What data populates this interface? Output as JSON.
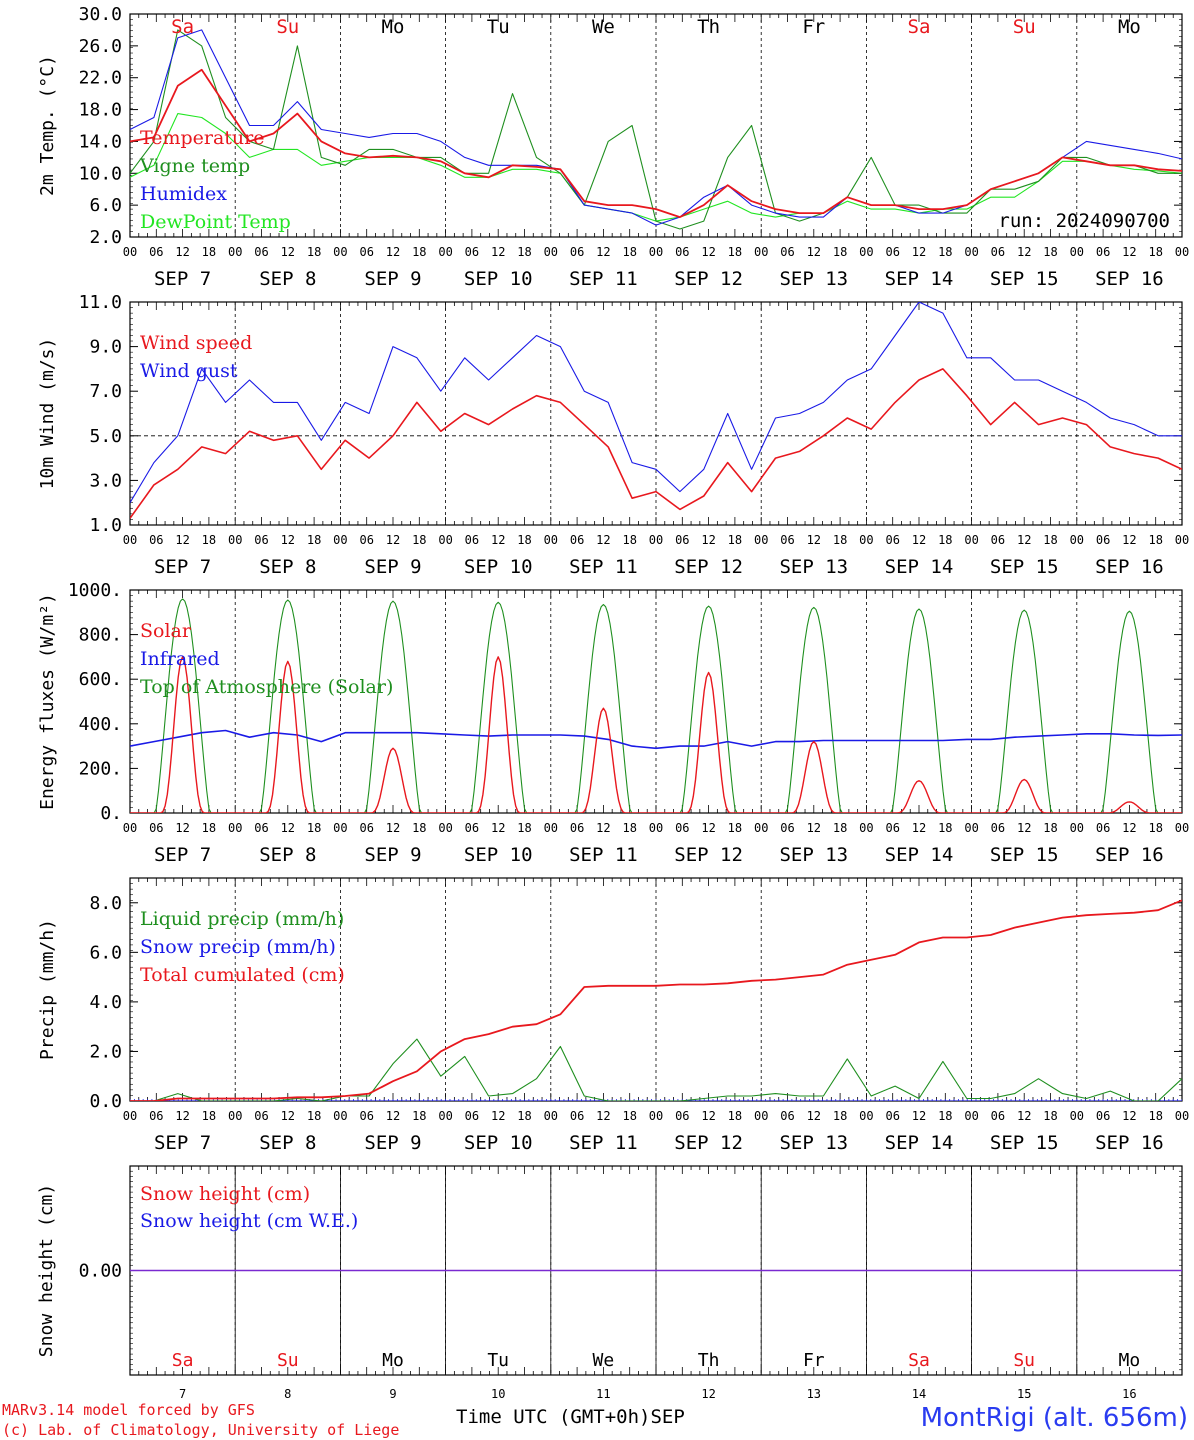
{
  "colors": {
    "red": "#e8181e",
    "green": "#1f8f1f",
    "blue": "#1a1ae6",
    "lightgreen": "#22e622",
    "purple": "#7a2ad0",
    "text": "#000000"
  },
  "days": [
    {
      "abbr": "Sa",
      "date": "7",
      "weekend": true
    },
    {
      "abbr": "Su",
      "date": "8",
      "weekend": true
    },
    {
      "abbr": "Mo",
      "date": "9",
      "weekend": false
    },
    {
      "abbr": "Tu",
      "date": "10",
      "weekend": false
    },
    {
      "abbr": "We",
      "date": "11",
      "weekend": false
    },
    {
      "abbr": "Th",
      "date": "12",
      "weekend": false
    },
    {
      "abbr": "Fr",
      "date": "13",
      "weekend": false
    },
    {
      "abbr": "Sa",
      "date": "14",
      "weekend": true
    },
    {
      "abbr": "Su",
      "date": "15",
      "weekend": true
    },
    {
      "abbr": "Mo",
      "date": "16",
      "weekend": false
    }
  ],
  "month_label": "SEP",
  "hour_ticks": [
    "00",
    "06",
    "12",
    "18"
  ],
  "footer": {
    "model": "MARv3.14 model forced by GFS",
    "lab": "(c) Lab. of Climatology, University of Liege",
    "xaxis_title": "Time UTC (GMT+0h)",
    "month": "SEP",
    "station": "MontRigi (alt. 656m)"
  },
  "chart_data": [
    {
      "id": "temperature",
      "type": "line",
      "ylabel": "2m Temp. (°C)",
      "ylim": [
        2,
        30
      ],
      "yticks": [
        "30.0",
        "26.0",
        "22.0",
        "18.0",
        "14.0",
        "10.0",
        "6.0",
        "2.0"
      ],
      "annotation": "run: 2024090700",
      "x_start": "2024-09-07 00:00 UTC",
      "x_step_hours": 6,
      "series": [
        {
          "name": "Temperature",
          "color": "red",
          "values": [
            14,
            14.5,
            21,
            23,
            18.5,
            14,
            15,
            17.5,
            14,
            12.5,
            12,
            12.2,
            12,
            11.5,
            10,
            9.5,
            11,
            10.8,
            10.5,
            6.5,
            6,
            6,
            5.5,
            4.5,
            6,
            8.5,
            6.5,
            5.5,
            5,
            5,
            7,
            6,
            6,
            5.5,
            5.5,
            6,
            8,
            9,
            10,
            12,
            11.5,
            11,
            11,
            10.5,
            10.3
          ]
        },
        {
          "name": "Vigne temp",
          "color": "green",
          "values": [
            10,
            14,
            28,
            26,
            17,
            14,
            13,
            26,
            12,
            11,
            13,
            13,
            12,
            12,
            10,
            10,
            20,
            12,
            10,
            6,
            14,
            16,
            4,
            3,
            4,
            12,
            16,
            5,
            4,
            5,
            7,
            12,
            6,
            6,
            5,
            5,
            8,
            8,
            9,
            12,
            12,
            11,
            11,
            10,
            10
          ]
        },
        {
          "name": "Humidex",
          "color": "blue",
          "values": [
            15.5,
            17,
            27,
            28,
            22,
            16,
            16,
            19,
            15.5,
            15,
            14.5,
            15,
            15,
            14,
            12,
            11,
            11,
            11,
            10.5,
            6,
            5.5,
            5,
            3.5,
            4.5,
            7,
            8.5,
            6,
            5,
            4.5,
            4.5,
            7,
            6,
            6,
            5,
            5,
            6,
            8,
            9,
            10,
            12,
            14,
            13.5,
            13,
            12.5,
            11.8
          ]
        },
        {
          "name": "DewPoint Temp",
          "color": "lightgreen",
          "values": [
            9.5,
            11,
            17.5,
            17,
            15,
            12,
            13,
            13,
            11,
            11.5,
            12,
            12,
            12,
            11,
            9.5,
            9.5,
            10.5,
            10.5,
            10,
            6,
            5.5,
            5,
            4,
            4.5,
            5.5,
            6.5,
            5,
            4.5,
            5,
            5,
            6.5,
            5.5,
            5.5,
            5,
            5.5,
            5.5,
            7,
            7,
            9,
            11.5,
            11.5,
            11,
            10.5,
            10.3,
            10
          ]
        }
      ]
    },
    {
      "id": "wind",
      "type": "line",
      "ylabel": "10m Wind (m/s)",
      "ylim": [
        1,
        11
      ],
      "ref_line": 5,
      "yticks": [
        "11.0",
        "9.0",
        "7.0",
        "5.0",
        "3.0",
        "1.0"
      ],
      "x_start": "2024-09-07 00:00 UTC",
      "x_step_hours": 6,
      "series": [
        {
          "name": "Wind speed",
          "color": "red",
          "values": [
            1.3,
            2.8,
            3.5,
            4.5,
            4.2,
            5.2,
            4.8,
            5.0,
            3.5,
            4.8,
            4.0,
            5.0,
            6.5,
            5.2,
            6.0,
            5.5,
            6.2,
            6.8,
            6.5,
            5.5,
            4.5,
            2.2,
            2.5,
            1.7,
            2.3,
            3.8,
            2.5,
            4.0,
            4.3,
            5.0,
            5.8,
            5.3,
            6.5,
            7.5,
            8.0,
            6.8,
            5.5,
            6.5,
            5.5,
            5.8,
            5.5,
            4.5,
            4.2,
            4.0,
            3.5
          ]
        },
        {
          "name": "Wind gust",
          "color": "blue",
          "values": [
            2.0,
            3.8,
            5.0,
            8.0,
            6.5,
            7.5,
            6.5,
            6.5,
            4.8,
            6.5,
            6.0,
            9.0,
            8.5,
            7.0,
            8.5,
            7.5,
            8.5,
            9.5,
            9.0,
            7.0,
            6.5,
            3.8,
            3.5,
            2.5,
            3.5,
            6.0,
            3.5,
            5.8,
            6.0,
            6.5,
            7.5,
            8.0,
            9.5,
            11.0,
            10.5,
            8.5,
            8.5,
            7.5,
            7.5,
            7.0,
            6.5,
            5.8,
            5.5,
            5.0,
            5.0
          ]
        }
      ]
    },
    {
      "id": "energy",
      "type": "line",
      "ylabel": "Energy fluxes (W/m²)",
      "ylim": [
        0,
        1000
      ],
      "yticks": [
        "1000.",
        "800.",
        "600.",
        "400.",
        "200.",
        "0."
      ],
      "series": [
        {
          "name": "Solar",
          "color": "red",
          "day_peaks": [
            700,
            680,
            290,
            700,
            470,
            630,
            320,
            145,
            150,
            50
          ]
        },
        {
          "name": "Infrared",
          "color": "blue",
          "values": [
            300,
            320,
            340,
            360,
            370,
            340,
            360,
            350,
            320,
            360,
            360,
            360,
            360,
            355,
            350,
            345,
            350,
            350,
            350,
            345,
            330,
            300,
            290,
            300,
            300,
            320,
            300,
            320,
            320,
            325,
            325,
            325,
            325,
            325,
            325,
            330,
            330,
            340,
            345,
            350,
            355,
            355,
            350,
            348,
            350
          ]
        },
        {
          "name": "Top of Atmosphere (Solar)",
          "color": "green",
          "day_peaks": [
            960,
            955,
            950,
            945,
            935,
            928,
            922,
            915,
            910,
            905
          ]
        }
      ]
    },
    {
      "id": "precip",
      "type": "line",
      "ylabel": "Precip (mm/h)",
      "ylim": [
        0,
        9
      ],
      "yticks": [
        "8.0",
        "6.0",
        "4.0",
        "2.0",
        "0.0"
      ],
      "series": [
        {
          "name": "Liquid precip (mm/h)",
          "color": "green",
          "values": [
            0,
            0,
            0.3,
            0,
            0,
            0,
            0,
            0.1,
            0,
            0.2,
            0.2,
            1.5,
            2.5,
            1.0,
            1.8,
            0.2,
            0.3,
            0.9,
            2.2,
            0.2,
            0,
            0,
            0,
            0,
            0.1,
            0.2,
            0.2,
            0.3,
            0.2,
            0.2,
            1.7,
            0.2,
            0.6,
            0.1,
            1.6,
            0.1,
            0.1,
            0.3,
            0.9,
            0.3,
            0.1,
            0.4,
            0,
            0,
            0.9
          ]
        },
        {
          "name": "Snow precip (mm/h)",
          "color": "blue",
          "values": [
            0,
            0,
            0,
            0,
            0,
            0,
            0,
            0,
            0,
            0,
            0,
            0,
            0,
            0,
            0,
            0,
            0,
            0,
            0,
            0,
            0,
            0,
            0,
            0,
            0,
            0,
            0,
            0,
            0,
            0,
            0,
            0,
            0,
            0,
            0,
            0,
            0,
            0,
            0,
            0,
            0,
            0,
            0,
            0,
            0
          ]
        },
        {
          "name": "Total cumulated (cm)",
          "color": "red",
          "values": [
            0,
            0,
            0.1,
            0.1,
            0.1,
            0.1,
            0.1,
            0.15,
            0.15,
            0.2,
            0.3,
            0.8,
            1.2,
            2.0,
            2.5,
            2.7,
            3.0,
            3.1,
            3.5,
            4.6,
            4.65,
            4.65,
            4.65,
            4.7,
            4.7,
            4.75,
            4.85,
            4.9,
            5.0,
            5.1,
            5.5,
            5.7,
            5.9,
            6.4,
            6.6,
            6.6,
            6.7,
            7.0,
            7.2,
            7.4,
            7.5,
            7.55,
            7.6,
            7.7,
            8.1
          ]
        }
      ]
    },
    {
      "id": "snow",
      "type": "line",
      "ylabel": "Snow height (cm)",
      "ylim": [
        -1,
        1
      ],
      "yticks": [
        "0.00"
      ],
      "series": [
        {
          "name": "Snow height (cm)",
          "color": "red",
          "values": [
            0,
            0
          ]
        },
        {
          "name": "Snow height (cm W.E.)",
          "color": "blue",
          "values": [
            0,
            0
          ]
        }
      ]
    }
  ]
}
